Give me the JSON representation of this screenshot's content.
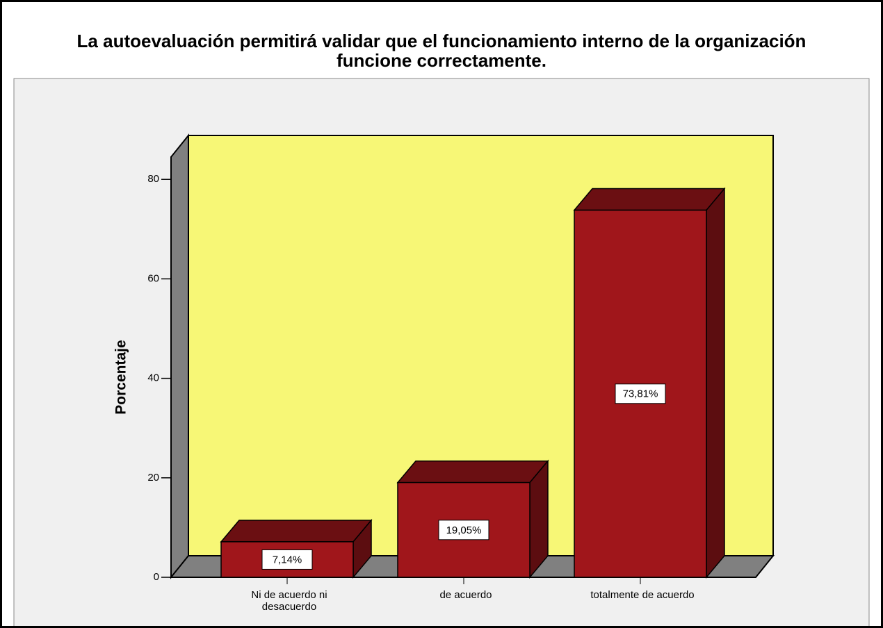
{
  "chart_data": {
    "type": "bar3d",
    "title": "La autoevaluación permitirá validar que el funcionamiento interno de la organización funcione correctamente.",
    "y_label": "Porcentaje",
    "categories": [
      "Ni de acuerdo ni desacuerdo",
      "de acuerdo",
      "totalmente de acuerdo"
    ],
    "values": [
      7.14,
      19.05,
      73.81
    ],
    "value_labels": [
      "7,14%",
      "19,05%",
      "73,81%"
    ],
    "color": "#a0161b",
    "ylim": [
      0,
      84.5
    ],
    "yticks": [
      0,
      20,
      40,
      60,
      80
    ]
  }
}
